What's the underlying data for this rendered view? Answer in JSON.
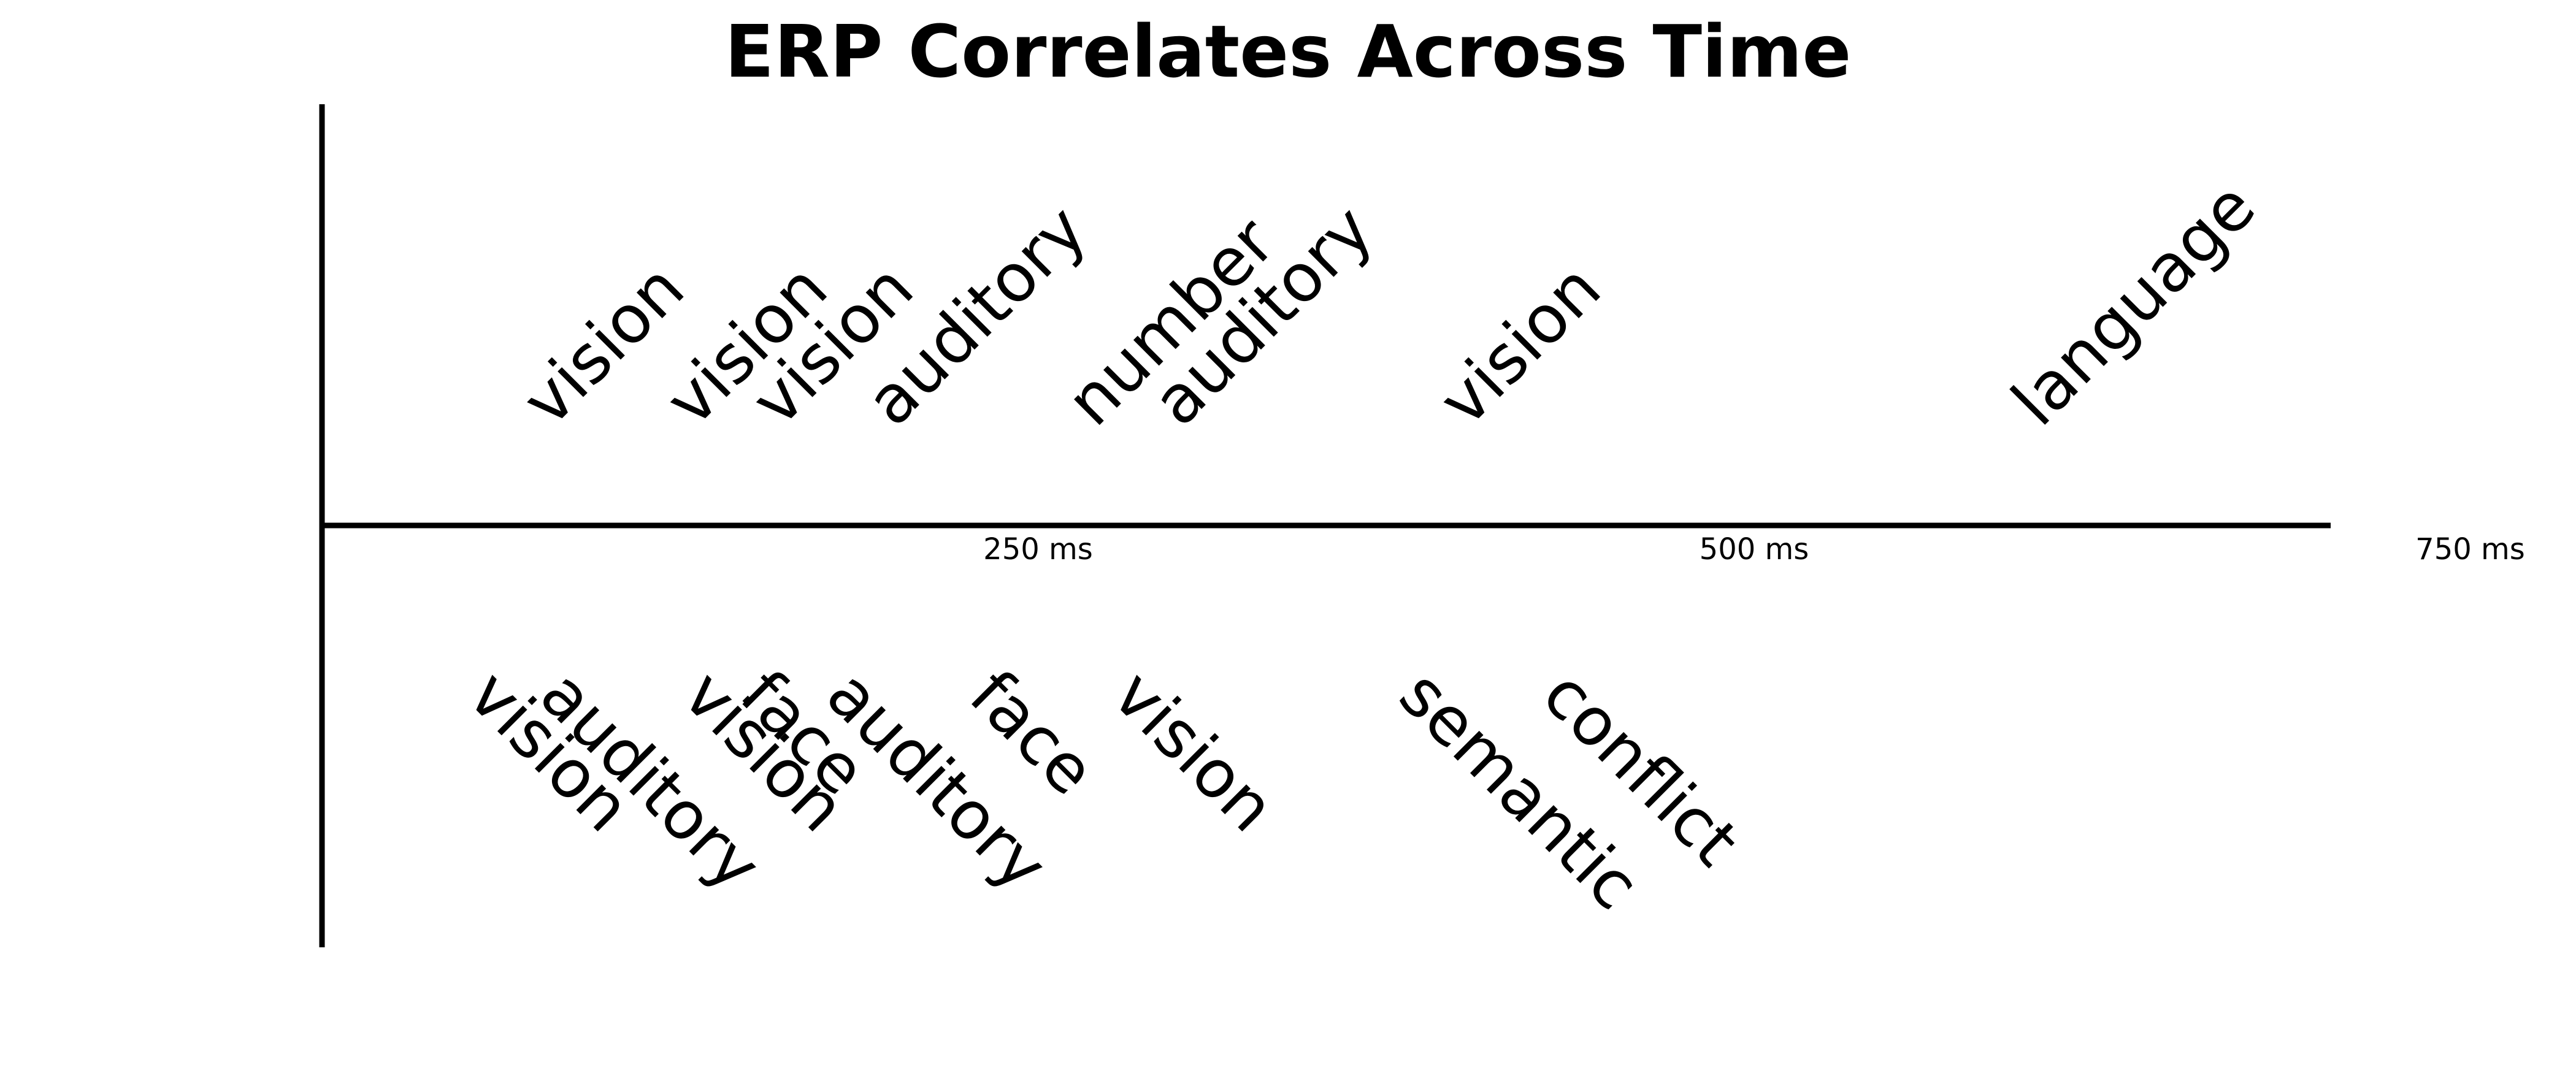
{
  "chart_data": {
    "type": "timeline",
    "title": "ERP Correlates Across Time",
    "x_unit": "ms",
    "xlim": [
      0,
      840
    ],
    "ticks": [
      {
        "value": 250,
        "label": "250 ms"
      },
      {
        "value": 500,
        "label": "500 ms"
      },
      {
        "value": 750,
        "label": "750 ms"
      }
    ],
    "positive": [
      {
        "latency": 80,
        "label": "vision"
      },
      {
        "latency": 130,
        "label": "vision"
      },
      {
        "latency": 160,
        "label": "vision"
      },
      {
        "latency": 200,
        "label": "auditory"
      },
      {
        "latency": 270,
        "label": "number"
      },
      {
        "latency": 300,
        "label": "auditory"
      },
      {
        "latency": 400,
        "label": "vision"
      },
      {
        "latency": 600,
        "label": "language"
      }
    ],
    "negative": [
      {
        "latency": 50,
        "label": "vision"
      },
      {
        "latency": 75,
        "label": "auditory"
      },
      {
        "latency": 125,
        "label": "vision"
      },
      {
        "latency": 145,
        "label": "face"
      },
      {
        "latency": 175,
        "label": "auditory"
      },
      {
        "latency": 225,
        "label": "face"
      },
      {
        "latency": 275,
        "label": "vision"
      },
      {
        "latency": 375,
        "label": "semantic"
      },
      {
        "latency": 425,
        "label": "conflict"
      }
    ],
    "grid": false,
    "legend": "none"
  }
}
